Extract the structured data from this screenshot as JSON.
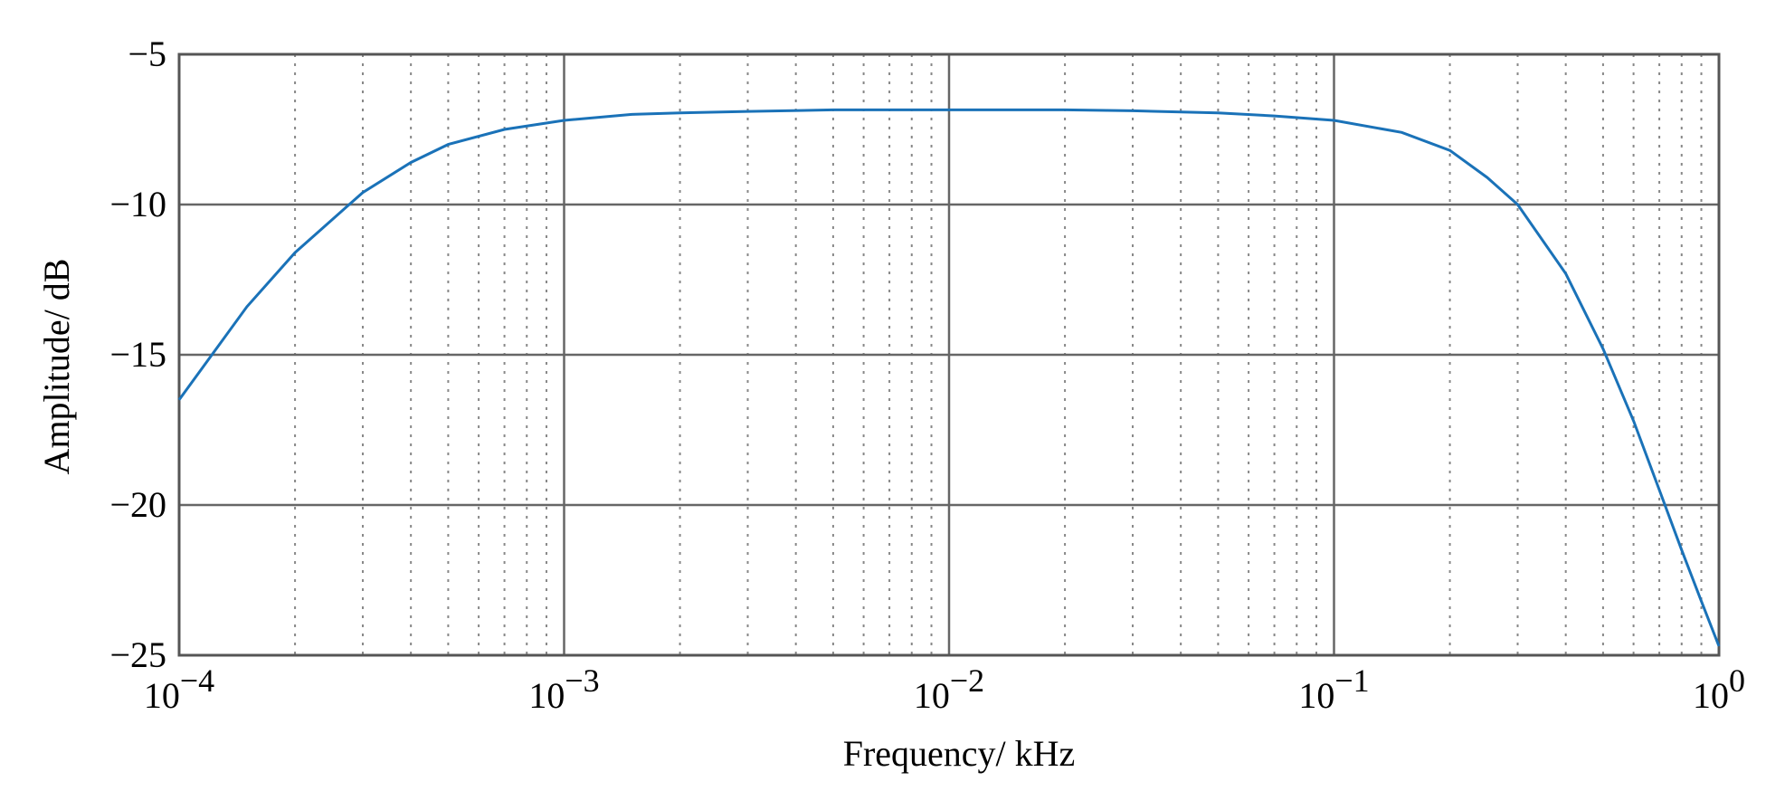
{
  "chart_data": {
    "type": "line",
    "title": "",
    "xlabel": "Frequency/ kHz",
    "ylabel": "Amplitude/ dB",
    "xscale": "log",
    "xlim": [
      0.0001,
      1
    ],
    "ylim": [
      -25,
      -5
    ],
    "x_ticks": [
      {
        "base": "10",
        "exp": "−4"
      },
      {
        "base": "10",
        "exp": "−3"
      },
      {
        "base": "10",
        "exp": "−2"
      },
      {
        "base": "10",
        "exp": "−1"
      },
      {
        "base": "10",
        "exp": "0"
      }
    ],
    "y_ticks": [
      "−5",
      "−10",
      "−15",
      "−20",
      "−25"
    ],
    "grid": "major solid, minor dotted",
    "legend": "none",
    "line_color": "#1a72b8",
    "series": [
      {
        "x": [
          0.0001,
          0.00015,
          0.0002,
          0.0003,
          0.0004,
          0.0005,
          0.0007,
          0.001,
          0.0015,
          0.002,
          0.003,
          0.005,
          0.01,
          0.02,
          0.03,
          0.05,
          0.07,
          0.1,
          0.15,
          0.2,
          0.25,
          0.3,
          0.4,
          0.5,
          0.6,
          0.7,
          0.8,
          0.9,
          1.0
        ],
        "y": [
          -16.5,
          -13.4,
          -11.6,
          -9.6,
          -8.6,
          -8.0,
          -7.5,
          -7.2,
          -7.0,
          -6.95,
          -6.9,
          -6.85,
          -6.85,
          -6.85,
          -6.88,
          -6.95,
          -7.05,
          -7.2,
          -7.6,
          -8.2,
          -9.1,
          -10.0,
          -12.3,
          -14.8,
          -17.2,
          -19.5,
          -21.5,
          -23.2,
          -24.7
        ]
      }
    ]
  }
}
